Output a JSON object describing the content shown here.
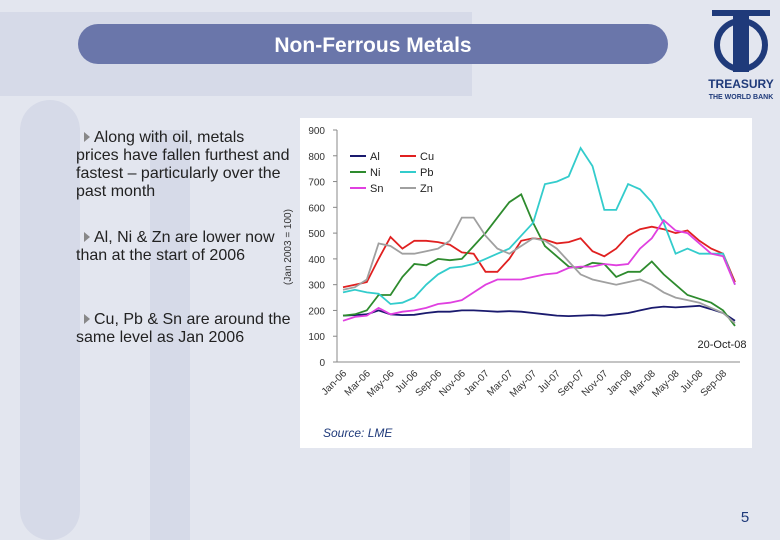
{
  "slide": {
    "title": "Non-Ferrous Metals",
    "bullets": [
      "Along with oil, metals prices have fallen furthest and fastest – particularly over the past month",
      "Al, Ni & Zn are lower now than at the start of 2006",
      "Cu, Pb & Sn are around the same level as Jan 2006"
    ],
    "source": "Source: LME",
    "page": "5"
  },
  "logo": {
    "name": "TREASURY",
    "org": "THE WORLD BANK"
  },
  "chart_data": {
    "type": "line",
    "y_label": "(Jan 2003 = 100)",
    "annotation": "20-Oct-08",
    "categories": [
      "Jan-06",
      null,
      "Mar-06",
      null,
      "May-06",
      null,
      "Jul-06",
      null,
      "Sep-06",
      null,
      "Nov-06",
      null,
      "Jan-07",
      null,
      "Mar-07",
      null,
      "May-07",
      null,
      "Jul-07",
      null,
      "Sep-07",
      null,
      "Nov-07",
      null,
      "Jan-08",
      null,
      "Mar-08",
      null,
      "May-08",
      null,
      "Jul-08",
      null,
      "Sep-08",
      null
    ],
    "ylim": [
      0,
      900
    ],
    "yticks": [
      0,
      100,
      200,
      300,
      400,
      500,
      600,
      700,
      800,
      900
    ],
    "legend": "upper left",
    "series": [
      {
        "name": "Al",
        "color": "#1a1a6e",
        "values": [
          180,
          182,
          185,
          200,
          185,
          182,
          183,
          190,
          195,
          195,
          200,
          200,
          198,
          195,
          197,
          195,
          190,
          185,
          180,
          178,
          180,
          182,
          180,
          185,
          190,
          200,
          210,
          215,
          212,
          215,
          218,
          205,
          190,
          160
        ]
      },
      {
        "name": "Cu",
        "color": "#e02020",
        "values": [
          290,
          300,
          310,
          400,
          485,
          440,
          470,
          470,
          465,
          455,
          425,
          420,
          350,
          350,
          400,
          470,
          480,
          475,
          460,
          465,
          480,
          430,
          410,
          440,
          490,
          515,
          525,
          515,
          500,
          510,
          470,
          440,
          420,
          310
        ]
      },
      {
        "name": "Ni",
        "color": "#2e8b2e",
        "values": [
          180,
          185,
          200,
          260,
          260,
          330,
          380,
          375,
          400,
          395,
          400,
          450,
          500,
          560,
          620,
          650,
          540,
          450,
          410,
          370,
          365,
          385,
          380,
          330,
          350,
          350,
          390,
          340,
          300,
          260,
          245,
          230,
          200,
          140
        ]
      },
      {
        "name": "Pb",
        "color": "#33cccc",
        "values": [
          270,
          280,
          270,
          265,
          225,
          230,
          250,
          300,
          340,
          365,
          370,
          380,
          400,
          420,
          440,
          490,
          540,
          690,
          700,
          720,
          830,
          760,
          590,
          590,
          690,
          670,
          620,
          540,
          420,
          440,
          420,
          420,
          420,
          300
        ]
      },
      {
        "name": "Sn",
        "color": "#e040e0",
        "values": [
          160,
          175,
          180,
          210,
          185,
          195,
          200,
          210,
          225,
          230,
          240,
          270,
          300,
          320,
          320,
          320,
          330,
          340,
          345,
          365,
          370,
          370,
          380,
          375,
          380,
          440,
          480,
          550,
          510,
          500,
          460,
          420,
          410,
          300
        ]
      },
      {
        "name": "Zn",
        "color": "#a0a0a0",
        "values": [
          280,
          290,
          320,
          460,
          450,
          420,
          420,
          430,
          440,
          470,
          560,
          560,
          490,
          440,
          420,
          450,
          480,
          470,
          440,
          390,
          340,
          320,
          310,
          300,
          310,
          320,
          300,
          270,
          250,
          240,
          230,
          210,
          190,
          150
        ]
      }
    ]
  }
}
